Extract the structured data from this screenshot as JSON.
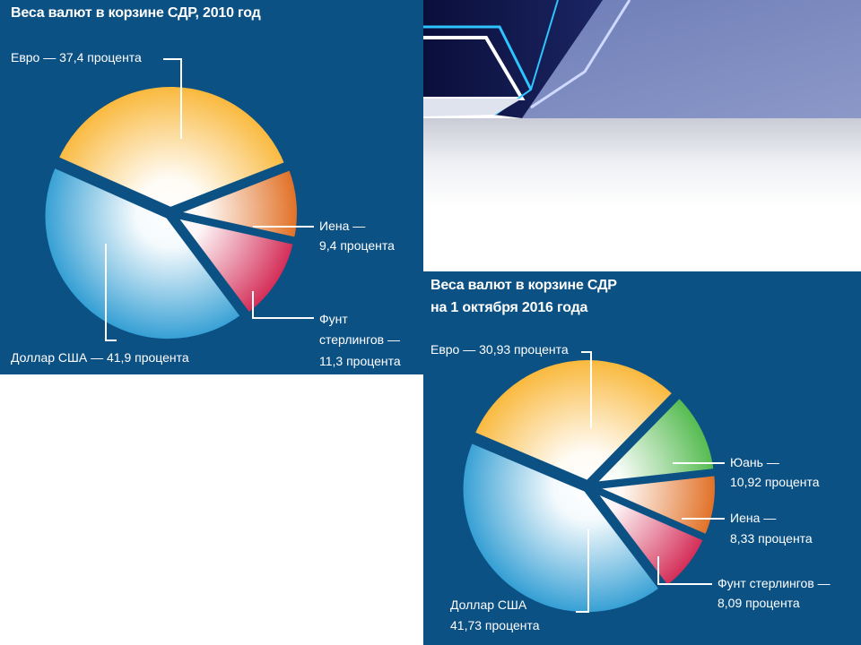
{
  "chart_data": [
    {
      "type": "pie",
      "title": "Веса валют в корзине СДР, 2010 год",
      "labels": [
        "Евро",
        "Иена",
        "Фунт стерлингов",
        "Доллар США"
      ],
      "values": [
        37.4,
        9.4,
        11.3,
        41.9
      ],
      "colors": [
        "#f9b533",
        "#e06a1c",
        "#d2234f",
        "#2a9ad2"
      ],
      "annotations": {
        "euro": "Евро — 37,4 процента",
        "yen_1": "Иена —",
        "yen_2": "9,4 процента",
        "gbp_1": "Фунт",
        "gbp_2": "стерлингов —",
        "gbp_3": "11,3 процента",
        "usd": "Доллар США — 41,9 процента"
      }
    },
    {
      "type": "pie",
      "title_line1": "Веса валют в корзине СДР",
      "title_line2": "на 1 октября 2016 года",
      "labels": [
        "Евро",
        "Юань",
        "Иена",
        "Фунт стерлингов",
        "Доллар США"
      ],
      "values": [
        30.93,
        10.92,
        8.33,
        8.09,
        41.73
      ],
      "colors": [
        "#f9b533",
        "#4db848",
        "#e06a1c",
        "#d2234f",
        "#2a9ad2"
      ],
      "annotations": {
        "euro": "Евро — 30,93 процента",
        "cny_1": "Юань —",
        "cny_2": "10,92 процента",
        "yen_1": "Иена —",
        "yen_2": "8,33 процента",
        "gbp_1": "Фунт стерлингов —",
        "gbp_2": "8,09 процента",
        "usd_1": "Доллар США",
        "usd_2": "41,73 процента"
      }
    }
  ]
}
